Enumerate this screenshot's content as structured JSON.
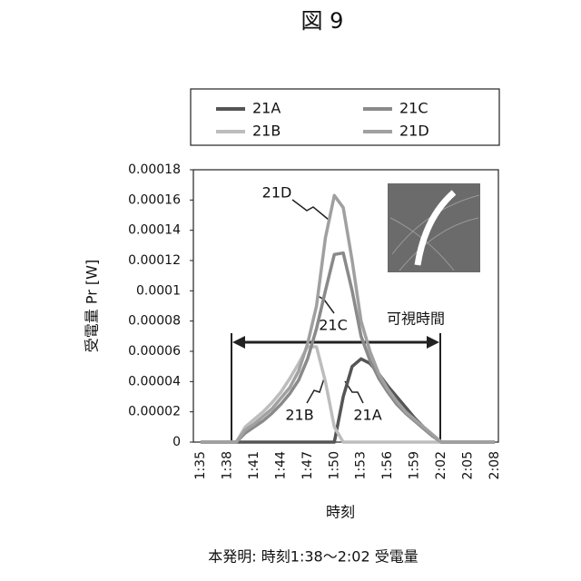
{
  "chart_data": {
    "type": "line",
    "title": "図 9",
    "caption": "本発明: 時刻1:38〜2:02 受電量",
    "x_label": "時刻",
    "y_label": "受電量 Pr [W]",
    "categories": [
      "1:35",
      null,
      null,
      "1:38",
      null,
      null,
      "1:41",
      null,
      null,
      "1:44",
      null,
      null,
      "1:47",
      null,
      null,
      "1:50",
      null,
      null,
      "1:53",
      null,
      null,
      "1:56",
      null,
      null,
      "1:59",
      null,
      null,
      "2:02",
      null,
      null,
      "2:05",
      null,
      null,
      "2:08"
    ],
    "ylim": [
      0,
      0.00018
    ],
    "yticks": [
      0,
      2e-05,
      4e-05,
      6e-05,
      8e-05,
      0.0001,
      0.00012,
      0.00014,
      0.00016,
      0.00018
    ],
    "series": [
      {
        "name": "21A",
        "color": "#555555",
        "values": [
          0,
          0,
          0,
          0,
          0,
          0,
          0,
          0,
          0,
          0,
          0,
          0,
          0,
          0,
          0,
          0,
          3e-05,
          5e-05,
          5.5e-05,
          5.2e-05,
          4.5e-05,
          3.7e-05,
          3e-05,
          2.3e-05,
          1.6e-05,
          1e-05,
          5e-06,
          0,
          0,
          0,
          0,
          0,
          0,
          0
        ]
      },
      {
        "name": "21B",
        "color": "#bdbdbd",
        "values": [
          0,
          0,
          0,
          0,
          0,
          1e-05,
          1.5e-05,
          2e-05,
          2.6e-05,
          3.3e-05,
          4.2e-05,
          5.2e-05,
          6.3e-05,
          6.3e-05,
          4e-05,
          1e-05,
          0,
          0,
          0,
          0,
          0,
          0,
          0,
          0,
          0,
          0,
          0,
          0,
          0,
          0,
          0,
          0,
          0,
          0
        ]
      },
      {
        "name": "21C",
        "color": "#8a8a8a",
        "values": [
          0,
          0,
          0,
          0,
          0,
          6e-06,
          1e-05,
          1.4e-05,
          1.9e-05,
          2.5e-05,
          3.2e-05,
          4.1e-05,
          5.5e-05,
          7.5e-05,
          0.0001,
          0.000124,
          0.000125,
          0.0001,
          7e-05,
          5.4e-05,
          4.2e-05,
          3.3e-05,
          2.5e-05,
          1.9e-05,
          1.4e-05,
          9e-06,
          4e-06,
          0,
          0,
          0,
          0,
          0,
          0,
          0
        ]
      },
      {
        "name": "21D",
        "color": "#a0a0a0",
        "values": [
          0,
          0,
          0,
          0,
          0,
          8e-06,
          1.2e-05,
          1.7e-05,
          2.2e-05,
          2.9e-05,
          3.6e-05,
          4.7e-05,
          6.5e-05,
          9e-05,
          0.000135,
          0.000163,
          0.000155,
          0.00012,
          8e-05,
          6e-05,
          4.5e-05,
          3.5e-05,
          2.7e-05,
          2e-05,
          1.5e-05,
          1e-05,
          5e-06,
          0,
          0,
          0,
          0,
          0,
          0,
          0
        ]
      }
    ],
    "annotations": [
      "21D",
      "21C",
      "21B",
      "21A",
      "可視時間"
    ],
    "legend": "top"
  }
}
